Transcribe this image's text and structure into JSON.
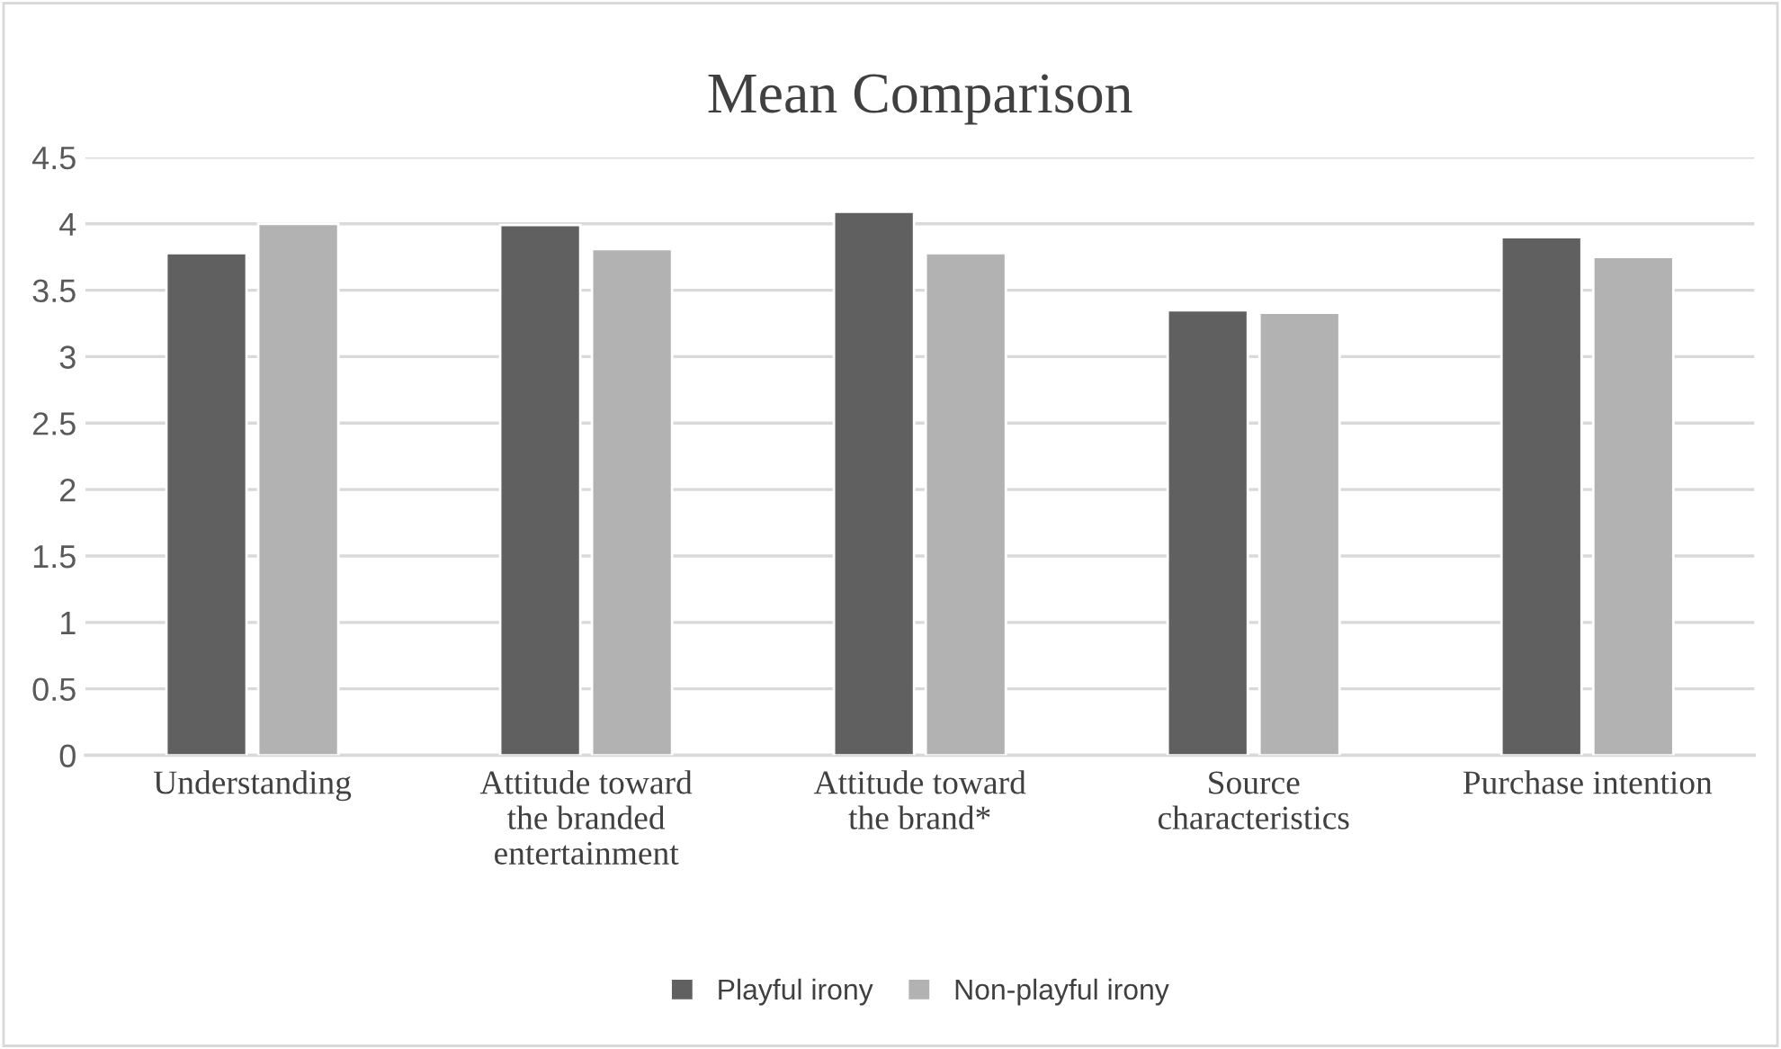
{
  "chart_data": {
    "type": "bar",
    "title": "Mean Comparison",
    "categories": [
      "Understanding",
      "Attitude toward\nthe branded\nentertainment",
      "Attitude toward\nthe brand*",
      "Source\ncharacteristics",
      "Purchase intention"
    ],
    "series": [
      {
        "name": "Playful irony",
        "color": "#606060",
        "values": [
          3.78,
          3.99,
          4.09,
          3.35,
          3.9
        ]
      },
      {
        "name": "Non-playful irony",
        "color": "#b2b2b2",
        "values": [
          4.0,
          3.81,
          3.78,
          3.33,
          3.75
        ]
      }
    ],
    "ylim": [
      0,
      4.5
    ],
    "yticks": [
      0,
      0.5,
      1,
      1.5,
      2,
      2.5,
      3,
      3.5,
      4,
      4.5
    ],
    "grid": "y",
    "legend": "bottom"
  }
}
